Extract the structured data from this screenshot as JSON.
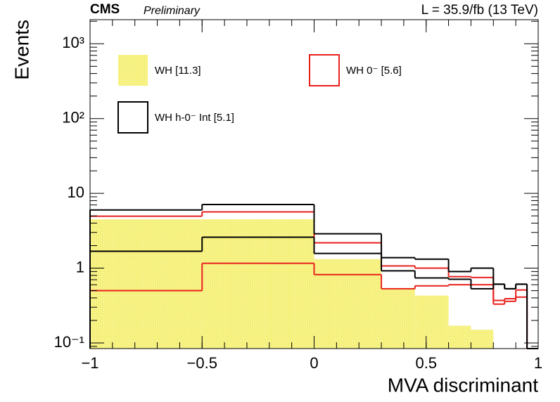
{
  "chart_data": {
    "type": "histogram",
    "title": "CMS",
    "subtitle": "Preliminary",
    "annotation": "L = 35.9/fb (13 TeV)",
    "x_label": "MVA discriminant",
    "y_label": "Events",
    "log_y": true,
    "bins": [
      -1,
      -0.5,
      0,
      0.3,
      0.45,
      0.6,
      0.7,
      0.8,
      0.85,
      0.9,
      0.95,
      1
    ],
    "xlim": [
      -1,
      1
    ],
    "xticks": [
      {
        "value": -1,
        "label": "−1"
      },
      {
        "value": -0.5,
        "label": "−0.5"
      },
      0,
      0.5,
      1
    ],
    "ylim": [
      0.084,
      2100
    ],
    "yticks": [
      {
        "value": 0.1,
        "label": "10⁻¹"
      },
      1,
      10,
      {
        "value": 100,
        "label": "10²"
      },
      {
        "value": 1000,
        "label": "10³"
      }
    ],
    "series": [
      {
        "name": "WH [11.3]",
        "color": "#f5f07a",
        "style": "filled",
        "values": [
          4.5,
          4.5,
          1.32,
          0.53,
          0.43,
          0.17,
          0.15,
          0,
          0,
          0,
          0
        ]
      },
      {
        "name": "WH 0⁻ [5.6]",
        "color": "#e8201c",
        "style": "line",
        "values": [
          4.95,
          5.65,
          2.18,
          1.07,
          1.0,
          0.77,
          0.75,
          0.37,
          0.39,
          0.51,
          0
        ]
      },
      {
        "name": "WH h-0⁻ Int [5.1]",
        "color": "#000000",
        "style": "line",
        "values": [
          6.0,
          7.1,
          2.88,
          1.38,
          1.32,
          0.9,
          1.0,
          0.61,
          0.53,
          0.61,
          0
        ]
      },
      {
        "color": "#e8201c",
        "style": "line",
        "values": [
          0.5,
          1.16,
          0.82,
          0.53,
          0.58,
          0.6,
          0.6,
          0.33,
          0.36,
          0.41,
          0
        ]
      },
      {
        "color": "#000000",
        "style": "line",
        "values": [
          1.68,
          2.59,
          1.57,
          0.92,
          0.74,
          0.71,
          0.53,
          0.61,
          0.53,
          0.61,
          0
        ]
      }
    ]
  }
}
